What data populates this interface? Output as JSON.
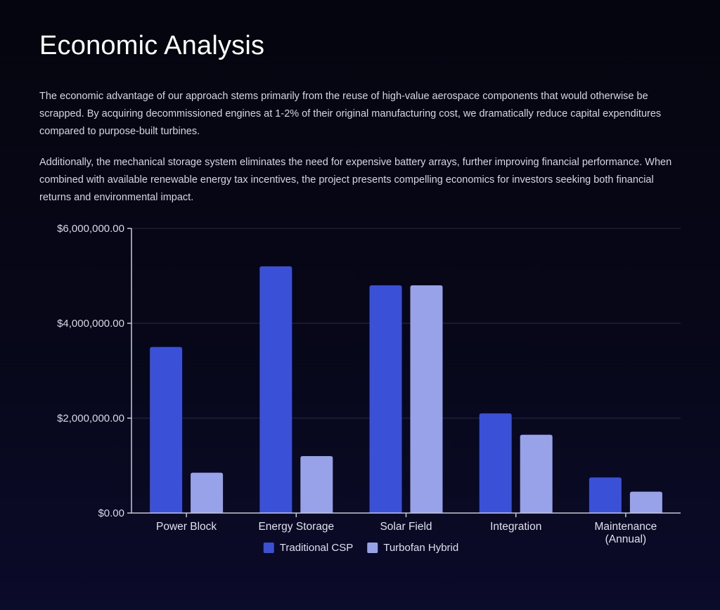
{
  "page": {
    "title": "Economic Analysis",
    "paragraphs": [
      "The economic advantage of our approach stems primarily from the reuse of high-value aerospace components that would otherwise be scrapped. By acquiring decommissioned engines at 1-2% of their original manufacturing cost, we dramatically reduce capital expenditures compared to purpose-built turbines.",
      "Additionally, the mechanical storage system eliminates the need for expensive battery arrays, further improving financial performance. When combined with available renewable energy tax incentives, the project presents compelling economics for investors seeking both financial returns and environmental impact."
    ]
  },
  "chart_data": {
    "type": "bar",
    "title": "",
    "xlabel": "",
    "ylabel": "",
    "categories": [
      [
        "Power Block"
      ],
      [
        "Energy Storage"
      ],
      [
        "Solar Field"
      ],
      [
        "Integration"
      ],
      [
        "Maintenance",
        "(Annual)"
      ]
    ],
    "series": [
      {
        "name": "Traditional CSP",
        "color": "#3a50d6",
        "values": [
          3500000,
          5200000,
          4800000,
          2100000,
          750000
        ]
      },
      {
        "name": "Turbofan Hybrid",
        "color": "#98a2e8",
        "values": [
          850000,
          1200000,
          4800000,
          1650000,
          450000
        ]
      }
    ],
    "ylim": [
      0,
      6000000
    ],
    "yticks": [
      0,
      2000000,
      4000000,
      6000000
    ],
    "ytick_labels": [
      "$0.00",
      "$2,000,000.00",
      "$4,000,000.00",
      "$6,000,000.00"
    ],
    "grid": true,
    "legend_position": "bottom"
  }
}
